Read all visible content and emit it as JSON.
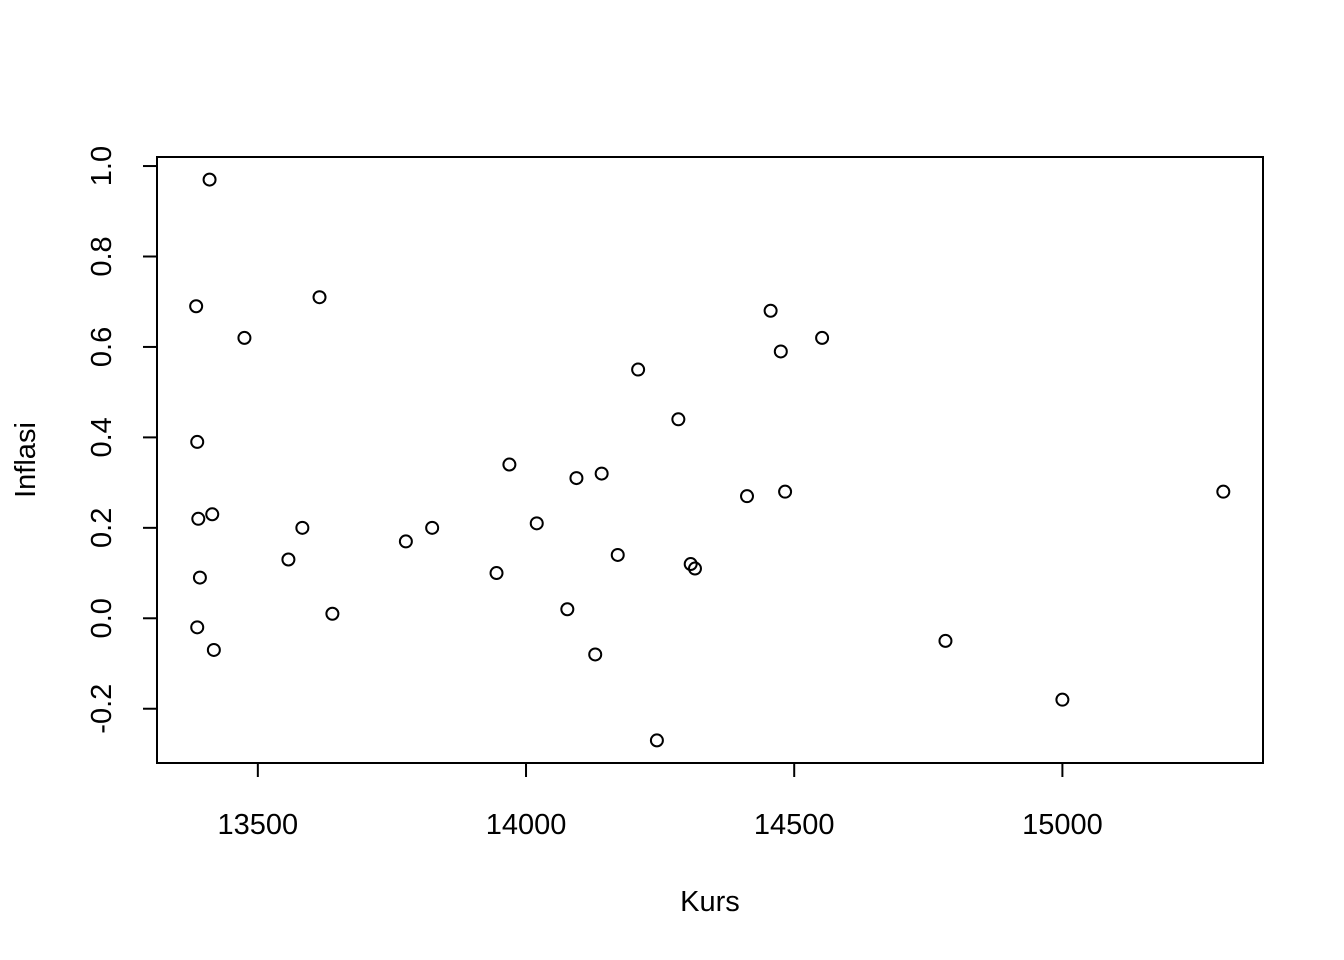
{
  "chart_data": {
    "type": "scatter",
    "title": "",
    "xlabel": "Kurs",
    "ylabel": "Inflasi",
    "xlim": [
      13312,
      15374
    ],
    "ylim": [
      -0.32,
      1.02
    ],
    "x_ticks": [
      13500,
      14000,
      14500,
      15000
    ],
    "x_tick_labels": [
      "13500",
      "14000",
      "14500",
      "15000"
    ],
    "y_ticks": [
      -0.2,
      0.0,
      0.2,
      0.4,
      0.6,
      0.8,
      1.0
    ],
    "y_tick_labels": [
      "-0.2",
      "0.0",
      "0.2",
      "0.4",
      "0.6",
      "0.8",
      "1.0"
    ],
    "grid": false,
    "legend": "none",
    "points": [
      {
        "x": 13410,
        "y": 0.97
      },
      {
        "x": 13385,
        "y": 0.69
      },
      {
        "x": 13475,
        "y": 0.62
      },
      {
        "x": 13615,
        "y": 0.71
      },
      {
        "x": 13387,
        "y": 0.39
      },
      {
        "x": 13389,
        "y": 0.22
      },
      {
        "x": 13415,
        "y": 0.23
      },
      {
        "x": 13392,
        "y": 0.09
      },
      {
        "x": 13387,
        "y": -0.02
      },
      {
        "x": 13418,
        "y": -0.07
      },
      {
        "x": 13583,
        "y": 0.2
      },
      {
        "x": 13557,
        "y": 0.13
      },
      {
        "x": 13639,
        "y": 0.01
      },
      {
        "x": 13776,
        "y": 0.17
      },
      {
        "x": 13825,
        "y": 0.2
      },
      {
        "x": 13945,
        "y": 0.1
      },
      {
        "x": 13969,
        "y": 0.34
      },
      {
        "x": 14020,
        "y": 0.21
      },
      {
        "x": 14077,
        "y": 0.02
      },
      {
        "x": 14094,
        "y": 0.31
      },
      {
        "x": 14141,
        "y": 0.32
      },
      {
        "x": 14129,
        "y": -0.08
      },
      {
        "x": 14171,
        "y": 0.14
      },
      {
        "x": 14209,
        "y": 0.55
      },
      {
        "x": 14244,
        "y": -0.27
      },
      {
        "x": 14284,
        "y": 0.44
      },
      {
        "x": 14307,
        "y": 0.12
      },
      {
        "x": 14315,
        "y": 0.11
      },
      {
        "x": 14412,
        "y": 0.27
      },
      {
        "x": 14456,
        "y": 0.68
      },
      {
        "x": 14475,
        "y": 0.59
      },
      {
        "x": 14483,
        "y": 0.28
      },
      {
        "x": 14552,
        "y": 0.62
      },
      {
        "x": 14782,
        "y": -0.05
      },
      {
        "x": 15000,
        "y": -0.18
      },
      {
        "x": 15300,
        "y": 0.28
      }
    ]
  }
}
